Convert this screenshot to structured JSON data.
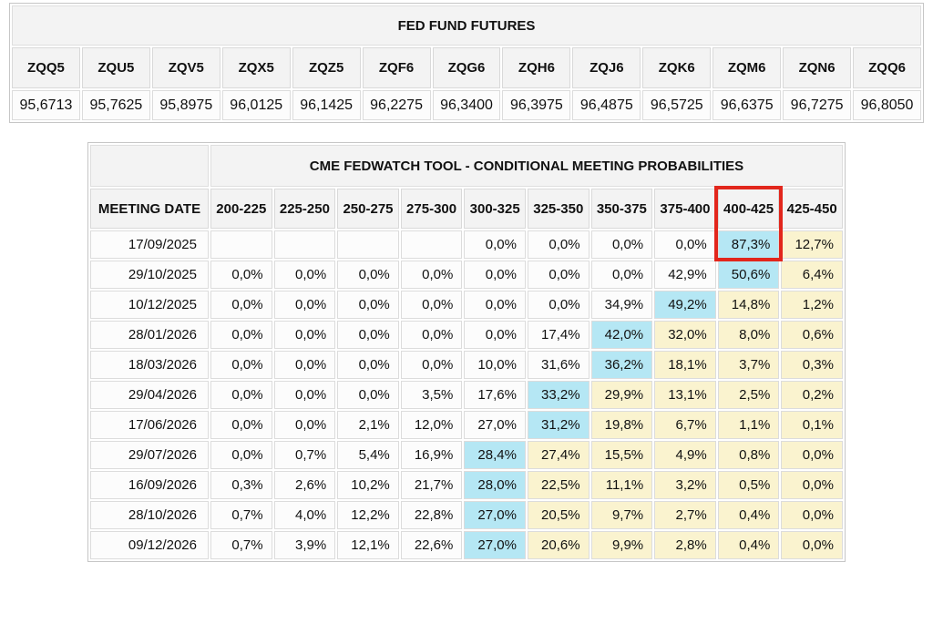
{
  "colors": {
    "header_bg": "#f3f3f3",
    "cell_bg": "#fcfcfc",
    "highlight_blue": "#b5e7f4",
    "highlight_yellow": "#faf3cf",
    "red_box": "#e2261c"
  },
  "fed_fund_futures": {
    "title": "FED FUND FUTURES",
    "contracts": [
      "ZQQ5",
      "ZQU5",
      "ZQV5",
      "ZQX5",
      "ZQZ5",
      "ZQF6",
      "ZQG6",
      "ZQH6",
      "ZQJ6",
      "ZQK6",
      "ZQM6",
      "ZQN6",
      "ZQQ6"
    ],
    "prices": [
      "95,6713",
      "95,7625",
      "95,8975",
      "96,0125",
      "96,1425",
      "96,2275",
      "96,3400",
      "96,3975",
      "96,4875",
      "96,5725",
      "96,6375",
      "96,7275",
      "96,8050"
    ]
  },
  "fedwatch": {
    "title": "CME FEDWATCH TOOL - CONDITIONAL MEETING PROBABILITIES",
    "date_header": "MEETING DATE",
    "rate_headers": [
      "200-225",
      "225-250",
      "250-275",
      "275-300",
      "300-325",
      "325-350",
      "350-375",
      "375-400",
      "400-425",
      "425-450"
    ],
    "red_box_column": "400-425",
    "rows": [
      {
        "date": "17/09/2025",
        "values": [
          "",
          "",
          "",
          "",
          "0,0%",
          "0,0%",
          "0,0%",
          "0,0%",
          "87,3%",
          "12,7%"
        ],
        "blue_index": 8
      },
      {
        "date": "29/10/2025",
        "values": [
          "0,0%",
          "0,0%",
          "0,0%",
          "0,0%",
          "0,0%",
          "0,0%",
          "0,0%",
          "42,9%",
          "50,6%",
          "6,4%"
        ],
        "blue_index": 8
      },
      {
        "date": "10/12/2025",
        "values": [
          "0,0%",
          "0,0%",
          "0,0%",
          "0,0%",
          "0,0%",
          "0,0%",
          "34,9%",
          "49,2%",
          "14,8%",
          "1,2%"
        ],
        "blue_index": 7
      },
      {
        "date": "28/01/2026",
        "values": [
          "0,0%",
          "0,0%",
          "0,0%",
          "0,0%",
          "0,0%",
          "17,4%",
          "42,0%",
          "32,0%",
          "8,0%",
          "0,6%"
        ],
        "blue_index": 6
      },
      {
        "date": "18/03/2026",
        "values": [
          "0,0%",
          "0,0%",
          "0,0%",
          "0,0%",
          "10,0%",
          "31,6%",
          "36,2%",
          "18,1%",
          "3,7%",
          "0,3%"
        ],
        "blue_index": 6
      },
      {
        "date": "29/04/2026",
        "values": [
          "0,0%",
          "0,0%",
          "0,0%",
          "3,5%",
          "17,6%",
          "33,2%",
          "29,9%",
          "13,1%",
          "2,5%",
          "0,2%"
        ],
        "blue_index": 5
      },
      {
        "date": "17/06/2026",
        "values": [
          "0,0%",
          "0,0%",
          "2,1%",
          "12,0%",
          "27,0%",
          "31,2%",
          "19,8%",
          "6,7%",
          "1,1%",
          "0,1%"
        ],
        "blue_index": 5
      },
      {
        "date": "29/07/2026",
        "values": [
          "0,0%",
          "0,7%",
          "5,4%",
          "16,9%",
          "28,4%",
          "27,4%",
          "15,5%",
          "4,9%",
          "0,8%",
          "0,0%"
        ],
        "blue_index": 4
      },
      {
        "date": "16/09/2026",
        "values": [
          "0,3%",
          "2,6%",
          "10,2%",
          "21,7%",
          "28,0%",
          "22,5%",
          "11,1%",
          "3,2%",
          "0,5%",
          "0,0%"
        ],
        "blue_index": 4
      },
      {
        "date": "28/10/2026",
        "values": [
          "0,7%",
          "4,0%",
          "12,2%",
          "22,8%",
          "27,0%",
          "20,5%",
          "9,7%",
          "2,7%",
          "0,4%",
          "0,0%"
        ],
        "blue_index": 4
      },
      {
        "date": "09/12/2026",
        "values": [
          "0,7%",
          "3,9%",
          "12,1%",
          "22,6%",
          "27,0%",
          "20,6%",
          "9,9%",
          "2,8%",
          "0,4%",
          "0,0%"
        ],
        "blue_index": 4
      }
    ]
  }
}
